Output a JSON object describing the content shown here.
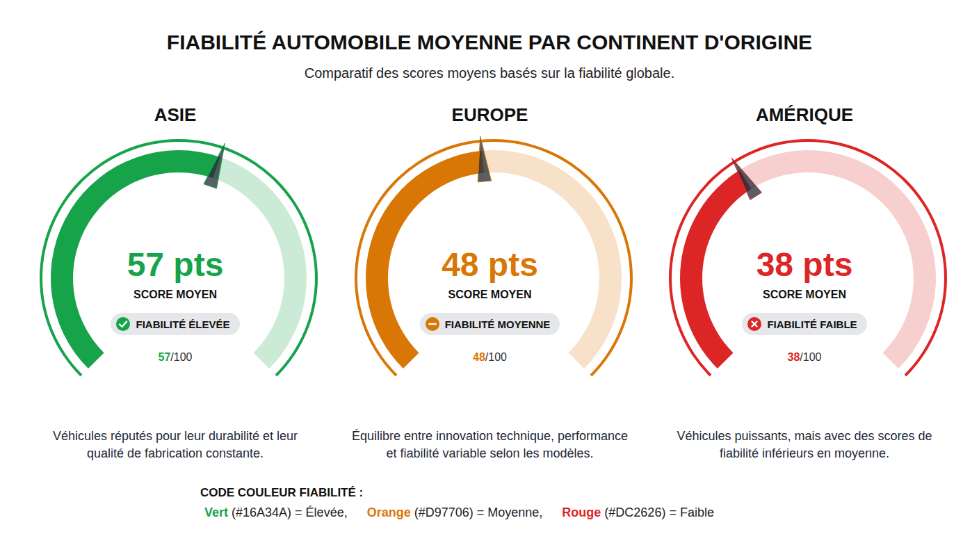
{
  "title": "FIABILITÉ AUTOMOBILE MOYENNE PAR CONTINENT D'ORIGINE",
  "subtitle": "Comparatif des scores moyens basés sur la fiabilité globale.",
  "chart_data": [
    {
      "type": "gauge",
      "title": "ASIE",
      "value": 57,
      "value_labels": [
        "57 pts"
      ],
      "ylim": [
        0,
        100
      ],
      "caption": "SCORE MOYEN",
      "badge": "FIABILITÉ ÉLEVÉE",
      "marker": "check",
      "scale_label": "57/100",
      "color": "#16A34A",
      "description": "Véhicules réputés pour leur durabilité et leur qualité de fabrication constante."
    },
    {
      "type": "gauge",
      "title": "EUROPE",
      "value": 48,
      "value_labels": [
        "48 pts"
      ],
      "ylim": [
        0,
        100
      ],
      "caption": "SCORE MOYEN",
      "badge": "FIABILITÉ MOYENNE",
      "marker": "minus",
      "scale_label": "48/100",
      "color": "#D97706",
      "description": "Équilibre entre innovation technique, performance et fiabilité variable selon les modèles."
    },
    {
      "type": "gauge",
      "title": "AMÉRIQUE",
      "value": 38,
      "value_labels": [
        "38 pts"
      ],
      "ylim": [
        0,
        100
      ],
      "caption": "SCORE MOYEN",
      "badge": "FIABILITÉ FAIBLE",
      "marker": "cross",
      "scale_label": "38/100",
      "color": "#DC2626",
      "description": "Véhicules puissants, mais avec des scores de fiabilité inférieurs en moyenne."
    }
  ],
  "legend": {
    "title": "CODE COULEUR FIABILITÉ :",
    "items": [
      {
        "name": "Vert",
        "color": "#16A34A",
        "text": "(#16A34A) = Élevée,"
      },
      {
        "name": "Orange",
        "color": "#D97706",
        "text": "(#D97706) = Moyenne,"
      },
      {
        "name": "Rouge",
        "color": "#DC2626",
        "text": "(#DC2626) = Faible"
      }
    ]
  }
}
